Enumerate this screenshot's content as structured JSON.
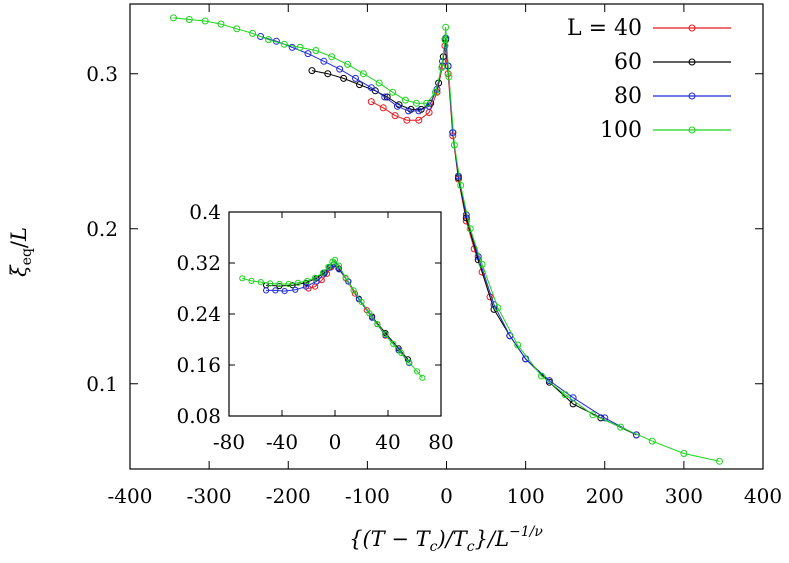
{
  "chart_data": [
    {
      "id": "main",
      "type": "scatter",
      "xlabel": "{(T − Tc)/Tc}/L^(−1/ν)",
      "xlabel_parts": {
        "open": "{(",
        "T": "T",
        "minus": " − ",
        "Tc": "T",
        "c": "c",
        "div": ")/",
        "Tc2": "T",
        "c2": "c",
        "close": "}/",
        "L": "L",
        "exp": "−1/ν"
      },
      "ylabel": "ξeq/L",
      "ylabel_parts": {
        "xi": "ξ",
        "eq": "eq",
        "slash": "/",
        "L": "L"
      },
      "xlim": [
        -400,
        400
      ],
      "ylim": [
        0.045,
        0.345
      ],
      "xticks": [
        {
          "value": -400,
          "label": "-400"
        },
        {
          "value": -300,
          "label": "-300"
        },
        {
          "value": -200,
          "label": "-200"
        },
        {
          "value": -100,
          "label": "-100"
        },
        {
          "value": 0,
          "label": "0"
        },
        {
          "value": 100,
          "label": "100"
        },
        {
          "value": 200,
          "label": "200"
        },
        {
          "value": 300,
          "label": "300"
        },
        {
          "value": 400,
          "label": "400"
        }
      ],
      "yticks": [
        {
          "value": 0.1,
          "label": "0.1"
        },
        {
          "value": 0.2,
          "label": "0.2"
        },
        {
          "value": 0.3,
          "label": "0.3"
        }
      ],
      "legend": {
        "position": "top-right",
        "header": "L = 40"
      },
      "series": [
        {
          "name": "40",
          "color": "#e8191e",
          "points": [
            [
              -95,
              0.282
            ],
            [
              -80,
              0.278
            ],
            [
              -65,
              0.273
            ],
            [
              -50,
              0.27
            ],
            [
              -35,
              0.27
            ],
            [
              -22,
              0.275
            ],
            [
              -12,
              0.288
            ],
            [
              -5,
              0.305
            ],
            [
              -2,
              0.318
            ],
            [
              2,
              0.3
            ],
            [
              8,
              0.26
            ],
            [
              15,
              0.232
            ],
            [
              25,
              0.205
            ],
            [
              35,
              0.187
            ],
            [
              45,
              0.172
            ],
            [
              55,
              0.156
            ]
          ]
        },
        {
          "name": "60",
          "color": "#000000",
          "points": [
            [
              -170,
              0.302
            ],
            [
              -150,
              0.3
            ],
            [
              -130,
              0.297
            ],
            [
              -110,
              0.293
            ],
            [
              -90,
              0.289
            ],
            [
              -75,
              0.285
            ],
            [
              -60,
              0.28
            ],
            [
              -45,
              0.277
            ],
            [
              -32,
              0.277
            ],
            [
              -20,
              0.281
            ],
            [
              -10,
              0.294
            ],
            [
              -4,
              0.311
            ],
            [
              -1,
              0.322
            ],
            [
              2,
              0.305
            ],
            [
              8,
              0.262
            ],
            [
              15,
              0.233
            ],
            [
              25,
              0.207
            ],
            [
              40,
              0.18
            ],
            [
              60,
              0.148
            ],
            [
              80,
              0.131
            ],
            [
              100,
              0.116
            ],
            [
              130,
              0.101
            ],
            [
              160,
              0.087
            ],
            [
              195,
              0.078
            ],
            [
              240,
              0.067
            ]
          ]
        },
        {
          "name": "80",
          "color": "#1f2bd8",
          "points": [
            [
              -235,
              0.324
            ],
            [
              -215,
              0.321
            ],
            [
              -195,
              0.317
            ],
            [
              -175,
              0.313
            ],
            [
              -155,
              0.308
            ],
            [
              -135,
              0.303
            ],
            [
              -115,
              0.297
            ],
            [
              -95,
              0.291
            ],
            [
              -78,
              0.285
            ],
            [
              -62,
              0.279
            ],
            [
              -48,
              0.276
            ],
            [
              -35,
              0.276
            ],
            [
              -22,
              0.279
            ],
            [
              -12,
              0.29
            ],
            [
              -5,
              0.308
            ],
            [
              -1,
              0.323
            ],
            [
              2,
              0.305
            ],
            [
              8,
              0.262
            ],
            [
              15,
              0.234
            ],
            [
              25,
              0.209
            ],
            [
              40,
              0.182
            ],
            [
              60,
              0.151
            ],
            [
              80,
              0.131
            ],
            [
              100,
              0.116
            ],
            [
              130,
              0.102
            ],
            [
              160,
              0.091
            ],
            [
              200,
              0.078
            ],
            [
              240,
              0.067
            ]
          ]
        },
        {
          "name": "100",
          "color": "#1cd41c",
          "points": [
            [
              -345,
              0.336
            ],
            [
              -325,
              0.335
            ],
            [
              -305,
              0.334
            ],
            [
              -285,
              0.332
            ],
            [
              -265,
              0.329
            ],
            [
              -245,
              0.326
            ],
            [
              -225,
              0.322
            ],
            [
              -205,
              0.319
            ],
            [
              -185,
              0.317
            ],
            [
              -165,
              0.315
            ],
            [
              -145,
              0.311
            ],
            [
              -125,
              0.306
            ],
            [
              -105,
              0.3
            ],
            [
              -85,
              0.294
            ],
            [
              -68,
              0.288
            ],
            [
              -52,
              0.283
            ],
            [
              -38,
              0.281
            ],
            [
              -25,
              0.281
            ],
            [
              -14,
              0.288
            ],
            [
              -6,
              0.304
            ],
            [
              -2,
              0.322
            ],
            [
              -1,
              0.33
            ],
            [
              3,
              0.298
            ],
            [
              10,
              0.254
            ],
            [
              18,
              0.228
            ],
            [
              30,
              0.2
            ],
            [
              45,
              0.177
            ],
            [
              65,
              0.149
            ],
            [
              90,
              0.125
            ],
            [
              120,
              0.105
            ],
            [
              150,
              0.093
            ],
            [
              185,
              0.08
            ],
            [
              220,
              0.072
            ],
            [
              260,
              0.063
            ],
            [
              300,
              0.055
            ],
            [
              345,
              0.05
            ]
          ]
        }
      ]
    },
    {
      "id": "inset",
      "type": "scatter",
      "xlim": [
        -80,
        80
      ],
      "ylim": [
        0.08,
        0.4
      ],
      "xticks": [
        {
          "value": -80,
          "label": "-80"
        },
        {
          "value": -40,
          "label": "-40"
        },
        {
          "value": 0,
          "label": "0"
        },
        {
          "value": 40,
          "label": "40"
        },
        {
          "value": 80,
          "label": "80"
        }
      ],
      "yticks": [
        {
          "value": 0.08,
          "label": "0.08"
        },
        {
          "value": 0.16,
          "label": "0.16"
        },
        {
          "value": 0.24,
          "label": "0.24"
        },
        {
          "value": 0.32,
          "label": "0.32"
        },
        {
          "value": 0.4,
          "label": "0.4"
        }
      ],
      "series": [
        {
          "name": "40",
          "color": "#e8191e",
          "points": [
            [
              -20,
              0.28
            ],
            [
              -15,
              0.283
            ],
            [
              -10,
              0.293
            ],
            [
              -6,
              0.303
            ],
            [
              -3,
              0.313
            ],
            [
              -1,
              0.318
            ],
            [
              2,
              0.313
            ],
            [
              8,
              0.296
            ],
            [
              15,
              0.272
            ],
            [
              24,
              0.246
            ],
            [
              32,
              0.224
            ],
            [
              38,
              0.206
            ]
          ]
        },
        {
          "name": "60",
          "color": "#000000",
          "points": [
            [
              -52,
              0.285
            ],
            [
              -42,
              0.284
            ],
            [
              -32,
              0.285
            ],
            [
              -22,
              0.289
            ],
            [
              -14,
              0.296
            ],
            [
              -8,
              0.305
            ],
            [
              -4,
              0.313
            ],
            [
              -1,
              0.318
            ],
            [
              3,
              0.311
            ],
            [
              10,
              0.291
            ],
            [
              18,
              0.264
            ],
            [
              28,
              0.236
            ],
            [
              38,
              0.21
            ],
            [
              48,
              0.186
            ],
            [
              55,
              0.169
            ]
          ]
        },
        {
          "name": "80",
          "color": "#1f2bd8",
          "points": [
            [
              -52,
              0.277
            ],
            [
              -45,
              0.277
            ],
            [
              -38,
              0.276
            ],
            [
              -30,
              0.278
            ],
            [
              -22,
              0.283
            ],
            [
              -14,
              0.291
            ],
            [
              -8,
              0.303
            ],
            [
              -4,
              0.313
            ],
            [
              -1,
              0.318
            ],
            [
              3,
              0.31
            ],
            [
              10,
              0.291
            ],
            [
              18,
              0.263
            ],
            [
              28,
              0.234
            ],
            [
              38,
              0.207
            ],
            [
              48,
              0.183
            ],
            [
              56,
              0.163
            ]
          ]
        },
        {
          "name": "100",
          "color": "#1cd41c",
          "points": [
            [
              -70,
              0.296
            ],
            [
              -63,
              0.292
            ],
            [
              -56,
              0.29
            ],
            [
              -49,
              0.288
            ],
            [
              -42,
              0.287
            ],
            [
              -35,
              0.287
            ],
            [
              -28,
              0.289
            ],
            [
              -21,
              0.292
            ],
            [
              -15,
              0.297
            ],
            [
              -9,
              0.305
            ],
            [
              -5,
              0.314
            ],
            [
              -2,
              0.322
            ],
            [
              0,
              0.325
            ],
            [
              3,
              0.316
            ],
            [
              8,
              0.297
            ],
            [
              14,
              0.277
            ],
            [
              20,
              0.259
            ],
            [
              26,
              0.241
            ],
            [
              32,
              0.224
            ],
            [
              38,
              0.208
            ],
            [
              44,
              0.193
            ],
            [
              50,
              0.179
            ],
            [
              56,
              0.164
            ],
            [
              62,
              0.15
            ],
            [
              66,
              0.14
            ]
          ]
        }
      ]
    }
  ]
}
